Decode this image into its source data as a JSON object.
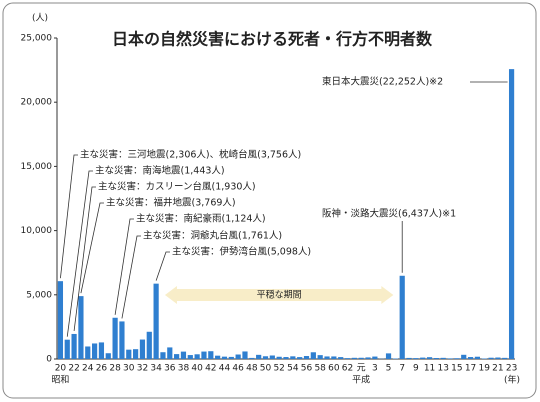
{
  "chart_data": {
    "type": "bar",
    "title": "日本の自然災害における死者・行方不明者数",
    "y_unit": "(人)",
    "x_unit": "(年)",
    "era_labels": [
      "昭和",
      "平成"
    ],
    "categories": [
      "20",
      null,
      "22",
      null,
      "24",
      null,
      "26",
      null,
      "28",
      null,
      "30",
      null,
      "32",
      null,
      "34",
      null,
      "36",
      null,
      "38",
      null,
      "40",
      null,
      "42",
      null,
      "44",
      null,
      "46",
      null,
      "48",
      null,
      "50",
      null,
      "52",
      null,
      "54",
      null,
      "56",
      null,
      "58",
      null,
      "60",
      null,
      "62",
      null,
      "元",
      null,
      "3",
      null,
      "5",
      null,
      "7",
      null,
      "9",
      null,
      "11",
      null,
      "13",
      null,
      "15",
      null,
      "17",
      null,
      "19",
      null,
      "21",
      null,
      "23"
    ],
    "values": [
      6062,
      1504,
      1950,
      4897,
      975,
      1210,
      1291,
      449,
      3212,
      2926,
      727,
      765,
      1515,
      2120,
      5868,
      528,
      902,
      381,
      575,
      307,
      367,
      578,
      607,
      259,
      183,
      163,
      350,
      587,
      85,
      324,
      213,
      273,
      174,
      153,
      208,
      148,
      232,
      524,
      301,
      199,
      199,
      148,
      69,
      93,
      96,
      123,
      190,
      19,
      438,
      39,
      6482,
      84,
      71,
      109,
      141,
      78,
      90,
      48,
      62,
      327,
      153,
      177,
      39,
      100,
      115,
      89,
      22576
    ],
    "color": "#2f7fd0",
    "ylim": [
      0,
      25000
    ],
    "yticks": [
      0,
      {
        "value": 5000,
        "label": "5,000"
      },
      {
        "value": 10000,
        "label": "10,000"
      },
      {
        "value": 15000,
        "label": "15,000"
      },
      {
        "value": 20000,
        "label": "20,000"
      },
      {
        "value": 25000,
        "label": "25,000"
      }
    ],
    "annotations": [
      "主な災害：三河地震(2,306人)、枕崎台風(3,756人)",
      "主な災害：南海地震(1,443人)",
      "主な災害：カスリーン台風(1,930人)",
      "主な災害：福井地震(3,769人)",
      "主な災害：南紀豪雨(1,124人)",
      "主な災害：洞爺丸台風(1,761人)",
      "主な災害：伊勢湾台風(5,098人)",
      "阪神・淡路大震災(6,437人)※1",
      "東日本大震災(22,252人)※2"
    ],
    "calm_period_label": "平穏な期間"
  }
}
